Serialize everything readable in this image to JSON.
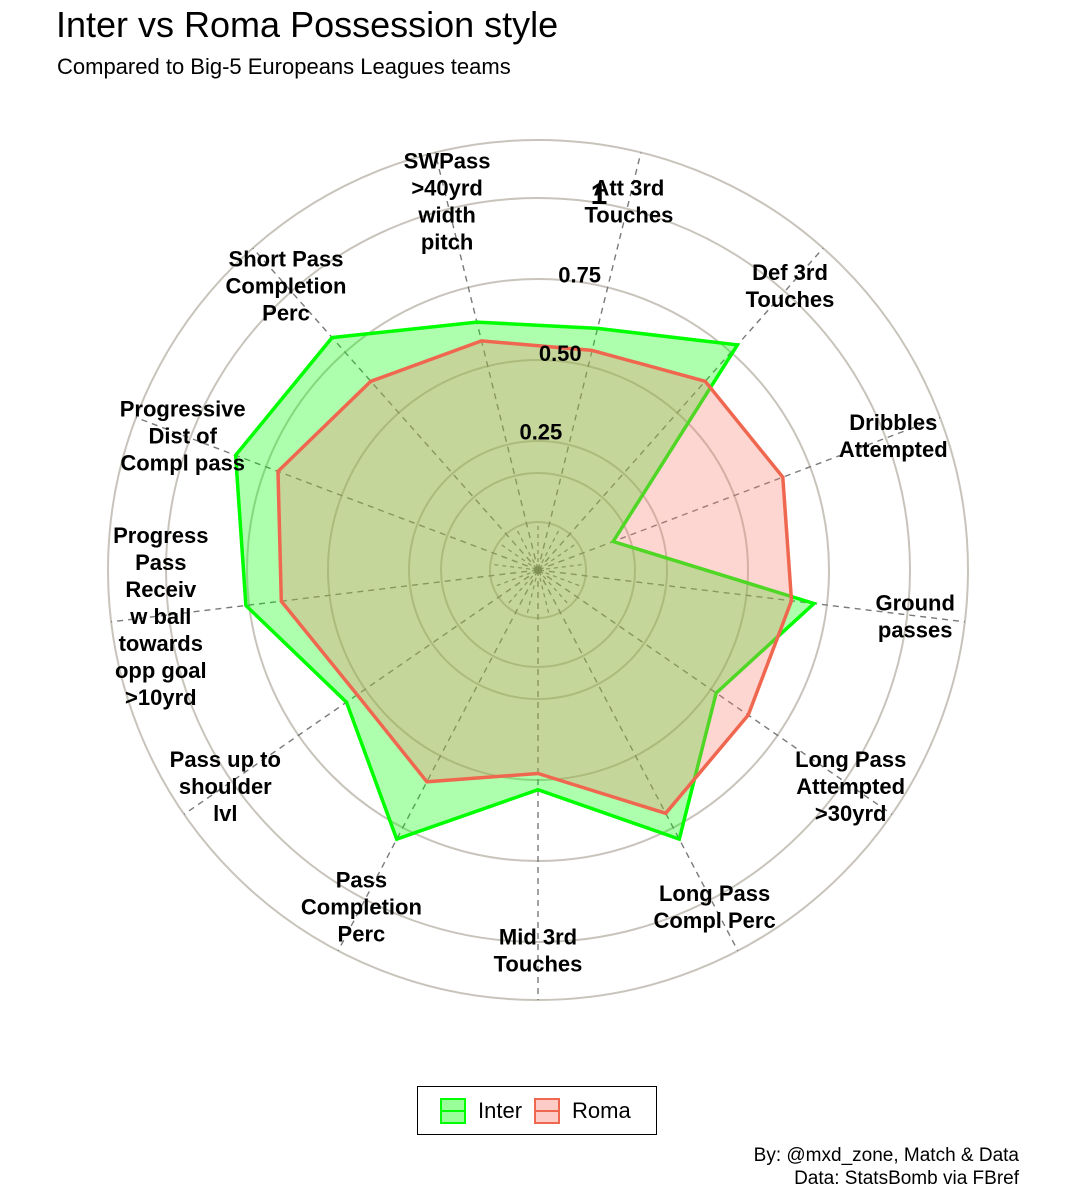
{
  "chart_data": {
    "type": "radar",
    "title": "Inter vs Roma Possession style",
    "subtitle": "Compared to Big-5 Europeans Leagues teams",
    "axes": [
      {
        "key": "att3rd",
        "lines": [
          "Att 3rd",
          "Touches"
        ]
      },
      {
        "key": "def3rd",
        "lines": [
          "Def 3rd",
          "Touches"
        ]
      },
      {
        "key": "dribbles",
        "lines": [
          "Dribbles",
          "Attempted"
        ]
      },
      {
        "key": "ground",
        "lines": [
          "Ground",
          "passes"
        ]
      },
      {
        "key": "longatt",
        "lines": [
          "Long Pass",
          "Attempted",
          ">30yrd"
        ]
      },
      {
        "key": "longcmp",
        "lines": [
          "Long Pass",
          "Compl Perc"
        ]
      },
      {
        "key": "mid3rd",
        "lines": [
          "Mid 3rd",
          "Touches"
        ]
      },
      {
        "key": "passcmp",
        "lines": [
          "Pass",
          "Completion",
          "Perc"
        ]
      },
      {
        "key": "shoulder",
        "lines": [
          "Pass up to",
          "shoulder",
          "lvl"
        ]
      },
      {
        "key": "progrec",
        "lines": [
          "Progress",
          "Pass",
          "Receiv",
          "w ball",
          "towards",
          "opp goal",
          ">10yrd"
        ]
      },
      {
        "key": "progdist",
        "lines": [
          "Progressive",
          "Dist of",
          "Compl pass"
        ]
      },
      {
        "key": "shortcmp",
        "lines": [
          "Short Pass",
          "Completion",
          "Perc"
        ]
      },
      {
        "key": "swpass",
        "lines": [
          "SWPass",
          ">40yrd",
          "width",
          "pitch"
        ]
      }
    ],
    "ticks": [
      "0.25",
      "0.50",
      "0.75",
      "1"
    ],
    "ylim": [
      0,
      1
    ],
    "series": [
      {
        "name": "Inter",
        "color": "#00ff00",
        "fill": "#00ff00",
        "values": [
          0.62,
          0.78,
          0.1,
          0.71,
          0.52,
          0.79,
          0.53,
          0.79,
          0.57,
          0.76,
          0.85,
          0.81,
          0.64
        ]
      },
      {
        "name": "Roma",
        "color": "#f0674f",
        "fill": "#fa8072",
        "values": [
          0.55,
          0.63,
          0.66,
          0.64,
          0.64,
          0.7,
          0.48,
          0.59,
          0.53,
          0.65,
          0.71,
          0.63,
          0.58
        ]
      }
    ]
  },
  "legend": {
    "inter": "Inter",
    "roma": "Roma"
  },
  "caption": {
    "line1": "By: @mxd_zone, Match & Data",
    "line2": "Data: StatsBomb via FBref"
  },
  "colors": {
    "inter": "#00ff00",
    "roma": "#f0674f",
    "grid": "#c8c4bc"
  }
}
